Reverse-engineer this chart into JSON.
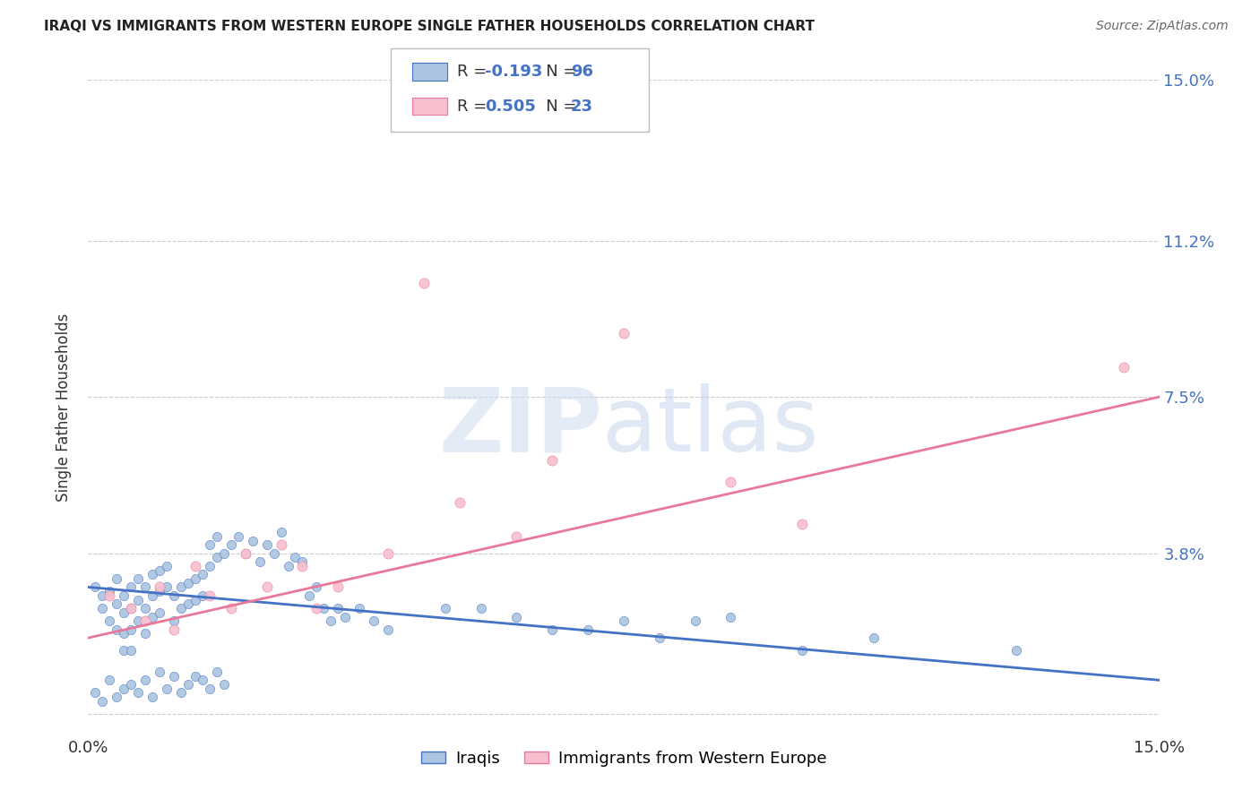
{
  "title": "IRAQI VS IMMIGRANTS FROM WESTERN EUROPE SINGLE FATHER HOUSEHOLDS CORRELATION CHART",
  "source": "Source: ZipAtlas.com",
  "ylabel": "Single Father Households",
  "xmin": 0.0,
  "xmax": 0.15,
  "ymin": -0.005,
  "ymax": 0.15,
  "yticks_right": [
    0.0,
    0.038,
    0.075,
    0.112,
    0.15
  ],
  "ytick_labels_right": [
    "",
    "3.8%",
    "7.5%",
    "11.2%",
    "15.0%"
  ],
  "legend_label1": "Iraqis",
  "legend_label2": "Immigrants from Western Europe",
  "R1": -0.193,
  "N1": 96,
  "R2": 0.505,
  "N2": 23,
  "color1": "#aac4e2",
  "color2": "#f9bfce",
  "line_color1": "#4472c4",
  "line_color2": "#e8799a",
  "blue_line_start_y": 0.03,
  "blue_line_end_y": 0.008,
  "pink_line_start_y": 0.018,
  "pink_line_end_y": 0.075,
  "blue_data_x": [
    0.001,
    0.002,
    0.002,
    0.003,
    0.003,
    0.004,
    0.004,
    0.004,
    0.005,
    0.005,
    0.005,
    0.005,
    0.006,
    0.006,
    0.006,
    0.006,
    0.007,
    0.007,
    0.007,
    0.008,
    0.008,
    0.008,
    0.009,
    0.009,
    0.009,
    0.01,
    0.01,
    0.01,
    0.011,
    0.011,
    0.012,
    0.012,
    0.013,
    0.013,
    0.014,
    0.014,
    0.015,
    0.015,
    0.016,
    0.016,
    0.017,
    0.017,
    0.018,
    0.018,
    0.019,
    0.02,
    0.021,
    0.022,
    0.023,
    0.024,
    0.025,
    0.026,
    0.027,
    0.028,
    0.029,
    0.03,
    0.031,
    0.032,
    0.033,
    0.034,
    0.035,
    0.036,
    0.038,
    0.04,
    0.042,
    0.001,
    0.002,
    0.003,
    0.004,
    0.005,
    0.006,
    0.007,
    0.008,
    0.009,
    0.01,
    0.011,
    0.012,
    0.013,
    0.014,
    0.015,
    0.016,
    0.017,
    0.018,
    0.019,
    0.05,
    0.065,
    0.075,
    0.08,
    0.09,
    0.1,
    0.055,
    0.06,
    0.07,
    0.085,
    0.11,
    0.13
  ],
  "blue_data_y": [
    0.03,
    0.028,
    0.025,
    0.029,
    0.022,
    0.032,
    0.026,
    0.02,
    0.028,
    0.024,
    0.019,
    0.015,
    0.03,
    0.025,
    0.02,
    0.015,
    0.032,
    0.027,
    0.022,
    0.03,
    0.025,
    0.019,
    0.033,
    0.028,
    0.023,
    0.034,
    0.029,
    0.024,
    0.035,
    0.03,
    0.028,
    0.022,
    0.03,
    0.025,
    0.031,
    0.026,
    0.032,
    0.027,
    0.033,
    0.028,
    0.04,
    0.035,
    0.042,
    0.037,
    0.038,
    0.04,
    0.042,
    0.038,
    0.041,
    0.036,
    0.04,
    0.038,
    0.043,
    0.035,
    0.037,
    0.036,
    0.028,
    0.03,
    0.025,
    0.022,
    0.025,
    0.023,
    0.025,
    0.022,
    0.02,
    0.005,
    0.003,
    0.008,
    0.004,
    0.006,
    0.007,
    0.005,
    0.008,
    0.004,
    0.01,
    0.006,
    0.009,
    0.005,
    0.007,
    0.009,
    0.008,
    0.006,
    0.01,
    0.007,
    0.025,
    0.02,
    0.022,
    0.018,
    0.023,
    0.015,
    0.025,
    0.023,
    0.02,
    0.022,
    0.018,
    0.015
  ],
  "pink_data_x": [
    0.003,
    0.006,
    0.008,
    0.01,
    0.012,
    0.015,
    0.017,
    0.02,
    0.022,
    0.025,
    0.027,
    0.03,
    0.032,
    0.035,
    0.042,
    0.047,
    0.052,
    0.06,
    0.065,
    0.075,
    0.09,
    0.1,
    0.145
  ],
  "pink_data_y": [
    0.028,
    0.025,
    0.022,
    0.03,
    0.02,
    0.035,
    0.028,
    0.025,
    0.038,
    0.03,
    0.04,
    0.035,
    0.025,
    0.03,
    0.038,
    0.102,
    0.05,
    0.042,
    0.06,
    0.09,
    0.055,
    0.045,
    0.082
  ]
}
